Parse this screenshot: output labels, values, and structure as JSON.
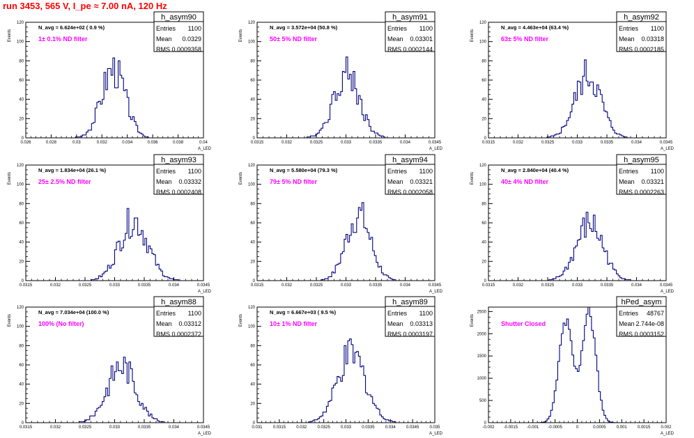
{
  "page": {
    "title": "run 3453,   565 V, I_pe ≈ 7.00 nA, 120 Hz",
    "colors": {
      "title": "#ff0000",
      "histogram": "#000080",
      "annotation": "#ff00ff",
      "frame": "#000000"
    }
  },
  "chart_data": [
    {
      "type": "histogram",
      "name": "h_asym90",
      "navg": "N_avg = 6.624e+02 ( 0.9 %)",
      "filter": "1± 0.1% ND filter",
      "stats": {
        "entries": "1100",
        "mean": "0.0329",
        "rms": "0.0009358"
      },
      "xlabel": "A_LED",
      "ylabel": "Events",
      "xlim": [
        0.026,
        0.04
      ],
      "ylim": [
        0,
        120
      ],
      "xticks": [
        "0.026",
        "0.028",
        "0.03",
        "0.032",
        "0.034",
        "0.036",
        "0.038",
        "0.04"
      ],
      "yticks": [
        "0",
        "20",
        "40",
        "60",
        "80",
        "100",
        "120"
      ],
      "shape": {
        "mean": 0.0329,
        "sigma": 0.0009358,
        "peak": 72
      }
    },
    {
      "type": "histogram",
      "name": "h_asym91",
      "navg": "N_avg = 3.572e+04 (50.8 %)",
      "filter": "50± 5% ND filter",
      "stats": {
        "entries": "1100",
        "mean": "0.03301",
        "rms": "0.0002144"
      },
      "xlabel": "A_LED",
      "ylabel": "Events",
      "xlim": [
        0.0315,
        0.0345
      ],
      "ylim": [
        0,
        120
      ],
      "xticks": [
        "0.0315",
        "0.032",
        "0.0325",
        "0.033",
        "0.0335",
        "0.034",
        "0.0345"
      ],
      "yticks": [
        "0",
        "20",
        "40",
        "60",
        "80",
        "100",
        "120"
      ],
      "shape": {
        "mean": 0.03301,
        "sigma": 0.0002144,
        "peak": 68
      }
    },
    {
      "type": "histogram",
      "name": "h_asym92",
      "navg": "N_avg = 4.463e+04 (63.4 %)",
      "filter": "63± 5% ND filter",
      "stats": {
        "entries": "1100",
        "mean": "0.03318",
        "rms": "0.0002185"
      },
      "xlabel": "A_LED",
      "ylabel": "Events",
      "xlim": [
        0.0315,
        0.0345
      ],
      "ylim": [
        0,
        120
      ],
      "xticks": [
        "0.0315",
        "0.032",
        "0.0325",
        "0.033",
        "0.0335",
        "0.034",
        "0.0345"
      ],
      "yticks": [
        "0",
        "20",
        "40",
        "60",
        "80",
        "100",
        "120"
      ],
      "shape": {
        "mean": 0.03318,
        "sigma": 0.0002185,
        "peak": 66
      }
    },
    {
      "type": "histogram",
      "name": "h_asym93",
      "navg": "N_avg = 1.834e+04 (26.1 %)",
      "filter": "25± 2.5% ND filter",
      "stats": {
        "entries": "1100",
        "mean": "0.03332",
        "rms": "0.0002408"
      },
      "xlabel": "A_LED",
      "ylabel": "Events",
      "xlim": [
        0.0315,
        0.0345
      ],
      "ylim": [
        0,
        120
      ],
      "xticks": [
        "0.0315",
        "0.032",
        "0.0325",
        "0.033",
        "0.0335",
        "0.034",
        "0.0345"
      ],
      "yticks": [
        "0",
        "20",
        "40",
        "60",
        "80",
        "100",
        "120"
      ],
      "shape": {
        "mean": 0.03332,
        "sigma": 0.0002408,
        "peak": 63
      }
    },
    {
      "type": "histogram",
      "name": "h_asym94",
      "navg": "N_avg = 5.580e+04 (79.3 %)",
      "filter": "79± 5% ND filter",
      "stats": {
        "entries": "1100",
        "mean": "0.03321",
        "rms": "0.0002058"
      },
      "xlabel": "A_LED",
      "ylabel": "Events",
      "xlim": [
        0.0315,
        0.0345
      ],
      "ylim": [
        0,
        120
      ],
      "xticks": [
        "0.0315",
        "0.032",
        "0.0325",
        "0.033",
        "0.0335",
        "0.034",
        "0.0345"
      ],
      "yticks": [
        "0",
        "20",
        "40",
        "60",
        "80",
        "100",
        "120"
      ],
      "shape": {
        "mean": 0.03321,
        "sigma": 0.0002058,
        "peak": 69
      }
    },
    {
      "type": "histogram",
      "name": "h_asym95",
      "navg": "N_avg = 2.840e+04 (40.4 %)",
      "filter": "40± 4% ND filter",
      "stats": {
        "entries": "1100",
        "mean": "0.03321",
        "rms": "0.0002263"
      },
      "xlabel": "A_LED",
      "ylabel": "Events",
      "xlim": [
        0.0315,
        0.0345
      ],
      "ylim": [
        0,
        120
      ],
      "xticks": [
        "0.0315",
        "0.032",
        "0.0325",
        "0.033",
        "0.0335",
        "0.034",
        "0.0345"
      ],
      "yticks": [
        "0",
        "20",
        "40",
        "60",
        "80",
        "100",
        "120"
      ],
      "shape": {
        "mean": 0.03321,
        "sigma": 0.0002263,
        "peak": 59
      }
    },
    {
      "type": "histogram",
      "name": "h_asym88",
      "navg": "N_avg = 7.034e+04 (100.0 %)",
      "filter": "100% (No filter)",
      "stats": {
        "entries": "1100",
        "mean": "0.03312",
        "rms": "0.0002372"
      },
      "xlabel": "A_LED",
      "ylabel": "Events",
      "xlim": [
        0.0315,
        0.0345
      ],
      "ylim": [
        0,
        120
      ],
      "xticks": [
        "0.0315",
        "0.032",
        "0.0325",
        "0.033",
        "0.0335",
        "0.034",
        "0.0345"
      ],
      "yticks": [
        "0",
        "20",
        "40",
        "60",
        "80",
        "100",
        "120"
      ],
      "shape": {
        "mean": 0.03312,
        "sigma": 0.0002372,
        "peak": 60
      }
    },
    {
      "type": "histogram",
      "name": "h_asym89",
      "navg": "N_avg = 6.667e+03 ( 9.5 %)",
      "filter": "10± 1% ND filter",
      "stats": {
        "entries": "1100",
        "mean": "0.03313",
        "rms": "0.0003197"
      },
      "xlabel": "A_LED",
      "ylabel": "Events",
      "xlim": [
        0.031,
        0.035
      ],
      "ylim": [
        0,
        120
      ],
      "xticks": [
        "0.031",
        "0.0315",
        "0.032",
        "0.0325",
        "0.033",
        "0.0335",
        "0.034",
        "0.0345",
        "0.035"
      ],
      "yticks": [
        "0",
        "20",
        "40",
        "60",
        "80",
        "100",
        "120"
      ],
      "shape": {
        "mean": 0.03313,
        "sigma": 0.0003197,
        "peak": 70
      }
    },
    {
      "type": "histogram",
      "name": "hPed_asym",
      "navg": "",
      "filter": "Shutter Closed",
      "stats": {
        "entries": "48767",
        "mean": "2.744e-08",
        "rms": "0.0003152"
      },
      "xlabel": "A_LED",
      "ylabel": "Events",
      "xlim": [
        -0.002,
        0.002
      ],
      "ylim": [
        0,
        2600
      ],
      "xticks": [
        "-0.002",
        "-0.0015",
        "-0.001",
        "-0.0005",
        "0",
        "0.0005",
        "0.001",
        "0.0015",
        "0.002"
      ],
      "yticks": [
        "0",
        "500",
        "1000",
        "1500",
        "2000",
        "2500"
      ],
      "shape": {
        "bimodal": true,
        "means": [
          -0.00026,
          0.00026
        ],
        "sigma": 0.000155,
        "peaks": [
          2250,
          2500
        ]
      }
    }
  ]
}
